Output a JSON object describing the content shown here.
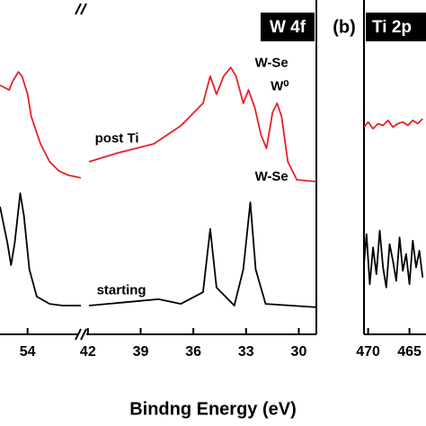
{
  "chart_data": [
    {
      "type": "line",
      "xlim": [
        55.5,
        51.1
      ],
      "xticks": [
        54
      ],
      "ylim": [
        0,
        10
      ],
      "series": [
        {
          "color": "#e8202a",
          "x": [
            55.5,
            55.0,
            54.8,
            54.5,
            54.3,
            54.0,
            53.8,
            53.3,
            52.8,
            52.3,
            51.8,
            51.1
          ],
          "values": [
            7.45,
            7.31,
            7.58,
            7.85,
            7.72,
            7.18,
            6.51,
            5.7,
            5.16,
            4.89,
            4.76,
            4.68
          ]
        },
        {
          "color": "#000000",
          "x": [
            55.5,
            55.1,
            54.9,
            54.7,
            54.4,
            54.2,
            53.9,
            53.5,
            52.8,
            52.1,
            51.1
          ],
          "values": [
            3.82,
            2.74,
            2.07,
            2.74,
            4.22,
            3.55,
            1.94,
            1.13,
            0.91,
            0.86,
            0.86
          ]
        }
      ]
    },
    {
      "type": "line",
      "title": "W 4f",
      "xlabel": "Bindng Energy (eV)",
      "xlim": [
        42.4,
        29.0
      ],
      "xticks": [
        42,
        39,
        36,
        33,
        30
      ],
      "ylim": [
        0,
        10
      ],
      "series": [
        {
          "color": "#e8202a",
          "x": [
            41.94,
            40.27,
            38.24,
            36.71,
            35.45,
            35.04,
            34.68,
            34.28,
            33.87,
            33.57,
            33.16,
            32.86,
            32.5,
            32.15,
            31.84,
            31.49,
            31.23,
            30.98,
            30.62,
            30.11,
            28.99
          ],
          "values": [
            5.16,
            5.43,
            5.7,
            6.24,
            6.91,
            7.72,
            7.18,
            7.72,
            7.98,
            7.72,
            6.91,
            7.31,
            6.77,
            5.97,
            5.56,
            6.64,
            6.91,
            6.51,
            5.16,
            4.62,
            4.57
          ]
        },
        {
          "color": "#000000",
          "x": [
            41.94,
            39.25,
            37.98,
            36.71,
            35.45,
            35.04,
            34.68,
            33.67,
            33.16,
            32.76,
            32.45,
            31.89,
            28.99
          ],
          "values": [
            0.86,
            0.99,
            1.05,
            0.91,
            1.26,
            3.15,
            1.4,
            0.86,
            1.94,
            3.95,
            1.94,
            0.91,
            0.81
          ]
        }
      ],
      "annotations": [
        {
          "text": "post Ti",
          "x": 41.6,
          "y": 5.85
        },
        {
          "text": "W-Se",
          "x": 32.5,
          "y": 8.1
        },
        {
          "text": "W⁰",
          "x": 31.6,
          "y": 7.4
        },
        {
          "text": "W-Se",
          "x": 32.5,
          "y": 4.7
        },
        {
          "text": "starting",
          "x": 41.5,
          "y": 1.3
        }
      ]
    },
    {
      "type": "line",
      "title": "Ti 2p",
      "panel_label": "(b)",
      "xlim": [
        470.5,
        463.0
      ],
      "xticks": [
        470,
        465
      ],
      "ylim": [
        0,
        10
      ],
      "series": [
        {
          "color": "#e8202a",
          "x": [
            470.5,
            470.0,
            469.4,
            468.8,
            468.2,
            467.6,
            467.0,
            466.4,
            465.8,
            465.2,
            464.6,
            464.0,
            463.4
          ],
          "values": [
            6.2,
            6.35,
            6.15,
            6.3,
            6.25,
            6.4,
            6.2,
            6.3,
            6.35,
            6.25,
            6.4,
            6.3,
            6.45
          ]
        },
        {
          "color": "#000000",
          "x": [
            470.5,
            470.2,
            469.8,
            469.4,
            469.0,
            468.6,
            468.2,
            467.8,
            467.4,
            467.0,
            466.6,
            466.2,
            465.8,
            465.4,
            465.0,
            464.6,
            464.2,
            463.8,
            463.4
          ],
          "values": [
            2.1,
            3.0,
            1.5,
            2.6,
            1.8,
            3.1,
            2.0,
            1.4,
            2.7,
            2.2,
            1.6,
            2.9,
            1.9,
            2.4,
            1.5,
            2.8,
            2.0,
            2.5,
            1.7
          ]
        }
      ]
    }
  ]
}
